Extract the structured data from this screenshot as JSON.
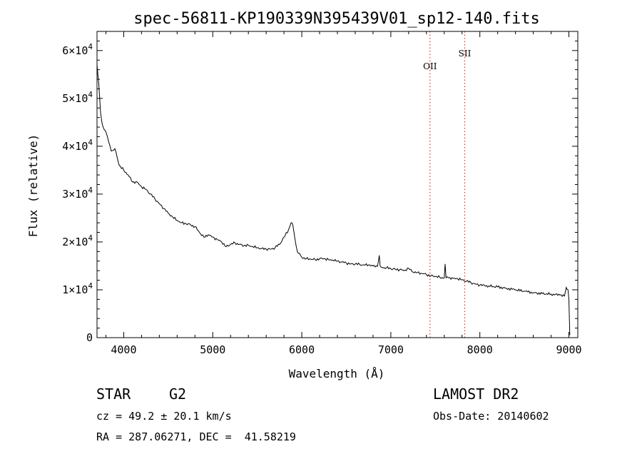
{
  "chart_data": {
    "type": "line",
    "title": "spec-56811-KP190339N395439V01_sp12-140.fits",
    "xlabel": "Wavelength (Å)",
    "ylabel": "Flux (relative)",
    "xlim": [
      3700,
      9100
    ],
    "ylim": [
      0,
      64000
    ],
    "x_ticks": [
      4000,
      5000,
      6000,
      7000,
      8000,
      9000
    ],
    "y_ticks": [
      {
        "value": 0,
        "label": "0"
      },
      {
        "value": 10000,
        "mant": "1",
        "exp": "4"
      },
      {
        "value": 20000,
        "mant": "2",
        "exp": "4"
      },
      {
        "value": 30000,
        "mant": "3",
        "exp": "4"
      },
      {
        "value": 40000,
        "mant": "4",
        "exp": "4"
      },
      {
        "value": 50000,
        "mant": "5",
        "exp": "4"
      },
      {
        "value": 60000,
        "mant": "6",
        "exp": "4"
      }
    ],
    "series": [
      {
        "points": [
          [
            3700,
            57000
          ],
          [
            3720,
            53000
          ],
          [
            3740,
            47000
          ],
          [
            3760,
            44500
          ],
          [
            3780,
            43500
          ],
          [
            3800,
            43000
          ],
          [
            3830,
            41000
          ],
          [
            3860,
            39000
          ],
          [
            3900,
            39500
          ],
          [
            3950,
            36000
          ],
          [
            4000,
            35000
          ],
          [
            4050,
            34000
          ],
          [
            4100,
            32500
          ],
          [
            4150,
            32500
          ],
          [
            4200,
            31500
          ],
          [
            4250,
            31000
          ],
          [
            4300,
            30000
          ],
          [
            4350,
            29000
          ],
          [
            4400,
            28000
          ],
          [
            4450,
            27000
          ],
          [
            4500,
            26000
          ],
          [
            4550,
            25200
          ],
          [
            4600,
            24500
          ],
          [
            4650,
            24000
          ],
          [
            4700,
            23800
          ],
          [
            4750,
            23600
          ],
          [
            4800,
            23200
          ],
          [
            4850,
            22000
          ],
          [
            4900,
            21000
          ],
          [
            4950,
            21500
          ],
          [
            5000,
            21000
          ],
          [
            5050,
            20500
          ],
          [
            5100,
            20000
          ],
          [
            5150,
            19000
          ],
          [
            5200,
            19500
          ],
          [
            5250,
            19800
          ],
          [
            5300,
            19500
          ],
          [
            5350,
            19200
          ],
          [
            5400,
            19300
          ],
          [
            5450,
            19000
          ],
          [
            5500,
            18800
          ],
          [
            5550,
            18600
          ],
          [
            5600,
            18500
          ],
          [
            5650,
            18500
          ],
          [
            5700,
            18800
          ],
          [
            5750,
            19500
          ],
          [
            5800,
            21000
          ],
          [
            5850,
            22500
          ],
          [
            5880,
            24000
          ],
          [
            5900,
            23500
          ],
          [
            5920,
            21000
          ],
          [
            5950,
            18000
          ],
          [
            6000,
            16800
          ],
          [
            6050,
            16500
          ],
          [
            6100,
            16400
          ],
          [
            6150,
            16300
          ],
          [
            6200,
            16500
          ],
          [
            6250,
            16500
          ],
          [
            6300,
            16300
          ],
          [
            6350,
            16200
          ],
          [
            6400,
            16000
          ],
          [
            6450,
            15800
          ],
          [
            6500,
            15600
          ],
          [
            6550,
            15400
          ],
          [
            6600,
            15400
          ],
          [
            6650,
            15300
          ],
          [
            6700,
            15200
          ],
          [
            6750,
            15200
          ],
          [
            6800,
            15000
          ],
          [
            6850,
            14900
          ],
          [
            6870,
            17200
          ],
          [
            6880,
            15000
          ],
          [
            6900,
            14700
          ],
          [
            6950,
            14600
          ],
          [
            7000,
            14400
          ],
          [
            7050,
            14300
          ],
          [
            7100,
            14200
          ],
          [
            7150,
            14000
          ],
          [
            7200,
            14500
          ],
          [
            7250,
            13700
          ],
          [
            7300,
            13600
          ],
          [
            7350,
            13400
          ],
          [
            7400,
            13200
          ],
          [
            7450,
            12900
          ],
          [
            7500,
            12800
          ],
          [
            7550,
            12600
          ],
          [
            7600,
            12500
          ],
          [
            7610,
            15400
          ],
          [
            7620,
            12500
          ],
          [
            7650,
            12500
          ],
          [
            7700,
            12400
          ],
          [
            7750,
            12300
          ],
          [
            7800,
            12100
          ],
          [
            7850,
            11800
          ],
          [
            7900,
            11500
          ],
          [
            7950,
            11200
          ],
          [
            8000,
            11000
          ],
          [
            8100,
            10800
          ],
          [
            8200,
            10600
          ],
          [
            8300,
            10300
          ],
          [
            8400,
            10000
          ],
          [
            8500,
            9700
          ],
          [
            8600,
            9400
          ],
          [
            8700,
            9200
          ],
          [
            8800,
            9100
          ],
          [
            8900,
            8900
          ],
          [
            8950,
            8700
          ],
          [
            8970,
            10500
          ],
          [
            8990,
            10000
          ],
          [
            9000,
            8000
          ],
          [
            9010,
            500
          ]
        ]
      }
    ],
    "marker_lines": [
      {
        "label": "OII",
        "x": 7440
      },
      {
        "label": "SII",
        "x": 7830
      }
    ],
    "line_color": "#000000",
    "marker_color": "#e03030"
  },
  "info": {
    "object_class": "STAR",
    "subclass": "G2",
    "redshift": "cz = 49.2 ± 20.1 km/s",
    "coords": "RA = 287.06271, DEC =  41.58219",
    "survey": "LAMOST DR2",
    "obs_date": "Obs-Date: 20140602"
  }
}
